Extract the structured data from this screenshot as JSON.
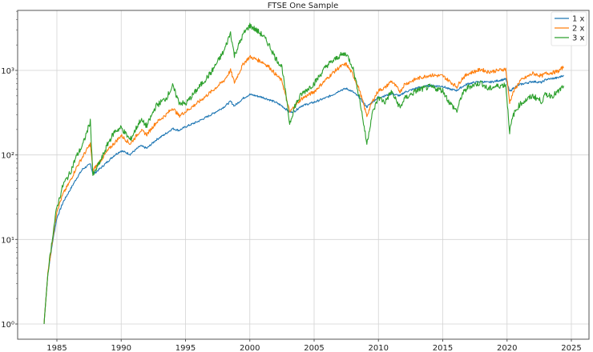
{
  "chart_data": {
    "type": "line",
    "title": "FTSE One Sample",
    "xlabel": "",
    "ylabel": "",
    "yscale": "log",
    "xlim": [
      1982.1,
      2026.6
    ],
    "ylim": [
      0.6,
      5500
    ],
    "grid": true,
    "legend_position": "upper right",
    "x_ticks": [
      1985,
      1990,
      1995,
      2000,
      2005,
      2010,
      2015,
      2020,
      2025
    ],
    "x_tick_labels": [
      "1985",
      "1990",
      "1995",
      "2000",
      "2005",
      "2010",
      "2015",
      "2020",
      "2025"
    ],
    "y_ticks": [
      1,
      10,
      100,
      1000
    ],
    "y_tick_labels": [
      "10⁰",
      "10¹",
      "10²",
      "10³"
    ],
    "x": [
      1984.0,
      1984.3,
      1984.7,
      1985.0,
      1985.5,
      1986.0,
      1986.5,
      1987.0,
      1987.6,
      1987.8,
      1988.0,
      1988.5,
      1989.0,
      1989.5,
      1990.0,
      1990.7,
      1991.5,
      1992.0,
      1992.7,
      1993.5,
      1994.0,
      1994.5,
      1995.0,
      1996.0,
      1997.0,
      1998.0,
      1998.5,
      1998.8,
      1999.5,
      2000.0,
      2000.5,
      2001.0,
      2001.5,
      2002.0,
      2002.5,
      2003.1,
      2003.5,
      2004.0,
      2005.0,
      2006.0,
      2006.5,
      2007.0,
      2007.5,
      2008.0,
      2008.5,
      2009.1,
      2009.5,
      2010.0,
      2010.5,
      2011.0,
      2011.7,
      2012.0,
      2013.0,
      2014.0,
      2015.0,
      2015.5,
      2016.1,
      2016.5,
      2017.0,
      2018.0,
      2018.5,
      2019.0,
      2019.9,
      2020.2,
      2020.5,
      2021.0,
      2022.0,
      2022.7,
      2023.0,
      2023.5,
      2024.0,
      2024.4
    ],
    "series": [
      {
        "name": "1 x",
        "color": "#1f77b4",
        "values": [
          1,
          4,
          10,
          18,
          28,
          38,
          52,
          68,
          78,
          60,
          62,
          72,
          85,
          100,
          112,
          102,
          128,
          120,
          150,
          180,
          205,
          195,
          215,
          250,
          300,
          370,
          430,
          380,
          470,
          520,
          500,
          480,
          450,
          420,
          380,
          320,
          330,
          380,
          420,
          480,
          520,
          580,
          610,
          560,
          480,
          370,
          420,
          480,
          500,
          530,
          500,
          550,
          620,
          660,
          650,
          600,
          580,
          640,
          700,
          740,
          720,
          740,
          790,
          560,
          620,
          680,
          740,
          720,
          780,
          800,
          820,
          880
        ]
      },
      {
        "name": "2 x",
        "color": "#ff7f0e",
        "values": [
          1,
          4,
          11,
          22,
          35,
          48,
          70,
          95,
          135,
          65,
          72,
          90,
          115,
          140,
          170,
          135,
          195,
          175,
          240,
          300,
          360,
          290,
          325,
          420,
          560,
          760,
          1000,
          720,
          1200,
          1450,
          1350,
          1250,
          1100,
          900,
          750,
          320,
          380,
          460,
          560,
          800,
          950,
          1100,
          1190,
          900,
          600,
          290,
          420,
          580,
          620,
          750,
          560,
          680,
          800,
          880,
          860,
          750,
          640,
          800,
          920,
          1030,
          960,
          980,
          1040,
          420,
          560,
          750,
          920,
          860,
          920,
          940,
          980,
          1100
        ]
      },
      {
        "name": "3 x",
        "color": "#2ca02c",
        "values": [
          1,
          4,
          12,
          24,
          45,
          60,
          95,
          130,
          250,
          57,
          65,
          92,
          140,
          190,
          210,
          150,
          260,
          220,
          380,
          470,
          650,
          420,
          400,
          620,
          950,
          1700,
          2800,
          1500,
          2700,
          3400,
          3000,
          2600,
          2000,
          1400,
          1100,
          235,
          380,
          520,
          700,
          1150,
          1300,
          1500,
          1580,
          1100,
          500,
          135,
          300,
          480,
          420,
          560,
          360,
          460,
          580,
          640,
          580,
          420,
          330,
          520,
          640,
          720,
          600,
          640,
          680,
          190,
          300,
          400,
          500,
          430,
          520,
          500,
          560,
          660
        ]
      }
    ]
  }
}
